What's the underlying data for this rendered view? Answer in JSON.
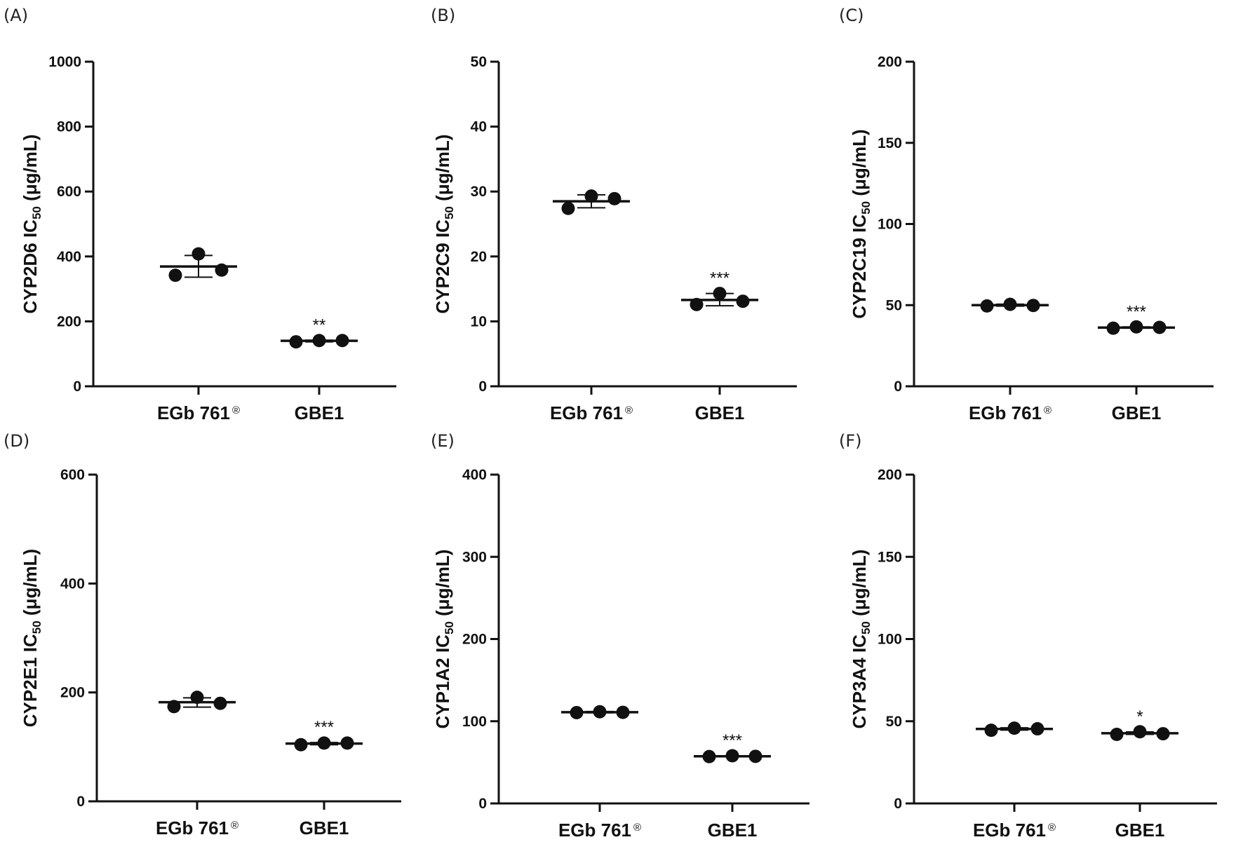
{
  "figure": {
    "colors": {
      "ink": "#111111",
      "background": "#ffffff"
    },
    "superscript_mark": "®",
    "subscript_text": "50"
  },
  "chart_data": [
    {
      "panel": "(A)",
      "type": "scatter",
      "ylabel": "CYP2D6 IC50 (μg/mL)",
      "ylabel_prefix": "CYP2D6 IC",
      "ylabel_unit": " (μg/mL)",
      "ylim": [
        0,
        1000
      ],
      "yticks": [
        0,
        200,
        400,
        600,
        800,
        1000
      ],
      "categories": [
        "EGb 761",
        "GBE1"
      ],
      "category_superscripts": [
        "®",
        ""
      ],
      "groups": [
        {
          "name": "EGb 761®",
          "points": [
            342,
            408,
            358
          ],
          "mean": 369,
          "sd_low": 336,
          "sd_high": 403,
          "significance": ""
        },
        {
          "name": "GBE1",
          "points": [
            137,
            141,
            141
          ],
          "mean": 140,
          "sd_low": 137,
          "sd_high": 142,
          "significance": "**"
        }
      ]
    },
    {
      "panel": "(B)",
      "type": "scatter",
      "ylabel": "CYP2C9 IC50 (μg/mL)",
      "ylabel_prefix": "CYP2C9 IC",
      "ylabel_unit": " (μg/mL)",
      "ylim": [
        0,
        50
      ],
      "yticks": [
        0,
        10,
        20,
        30,
        40,
        50
      ],
      "categories": [
        "EGb 761",
        "GBE1"
      ],
      "category_superscripts": [
        "®",
        ""
      ],
      "groups": [
        {
          "name": "EGb 761®",
          "points": [
            27.4,
            29.3,
            28.9
          ],
          "mean": 28.5,
          "sd_low": 27.5,
          "sd_high": 29.5,
          "significance": ""
        },
        {
          "name": "GBE1",
          "points": [
            12.6,
            14.3,
            13.1
          ],
          "mean": 13.3,
          "sd_low": 12.4,
          "sd_high": 14.3,
          "significance": "***"
        }
      ]
    },
    {
      "panel": "(C)",
      "type": "scatter",
      "ylabel": "CYP2C19 IC50 (μg/mL)",
      "ylabel_prefix": "CYP2C19 IC",
      "ylabel_unit": " (μg/mL)",
      "ylim": [
        0,
        200
      ],
      "yticks": [
        0,
        50,
        100,
        150,
        200
      ],
      "categories": [
        "EGb 761",
        "GBE1"
      ],
      "category_superscripts": [
        "®",
        ""
      ],
      "groups": [
        {
          "name": "EGb 761®",
          "points": [
            49.5,
            50.5,
            49.8
          ],
          "mean": 50,
          "sd_low": 49.4,
          "sd_high": 50.6,
          "significance": ""
        },
        {
          "name": "GBE1",
          "points": [
            35.8,
            36.6,
            36.3
          ],
          "mean": 36.2,
          "sd_low": 35.8,
          "sd_high": 36.6,
          "significance": "***"
        }
      ]
    },
    {
      "panel": "(D)",
      "type": "scatter",
      "ylabel": "CYP2E1 IC50 (μg/mL)",
      "ylabel_prefix": "CYP2E1 IC",
      "ylabel_unit": " (μg/mL)",
      "ylim": [
        0,
        600
      ],
      "yticks": [
        0,
        200,
        400,
        600
      ],
      "categories": [
        "EGb 761",
        "GBE1"
      ],
      "category_superscripts": [
        "®",
        ""
      ],
      "groups": [
        {
          "name": "EGb 761®",
          "points": [
            174,
            191,
            180
          ],
          "mean": 182,
          "sd_low": 173,
          "sd_high": 190,
          "significance": ""
        },
        {
          "name": "GBE1",
          "points": [
            104,
            107,
            107
          ],
          "mean": 106,
          "sd_low": 104,
          "sd_high": 108,
          "significance": "***"
        }
      ]
    },
    {
      "panel": "(E)",
      "type": "scatter",
      "ylabel": "CYP1A2 IC50 (μg/mL)",
      "ylabel_prefix": "CYP1A2 IC",
      "ylabel_unit": " (μg/mL)",
      "ylim": [
        0,
        400
      ],
      "yticks": [
        0,
        100,
        200,
        300,
        400
      ],
      "categories": [
        "EGb 761",
        "GBE1"
      ],
      "category_superscripts": [
        "®",
        ""
      ],
      "groups": [
        {
          "name": "EGb 761®",
          "points": [
            110.5,
            111.5,
            110.8
          ],
          "mean": 111,
          "sd_low": 110.2,
          "sd_high": 111.8,
          "significance": ""
        },
        {
          "name": "GBE1",
          "points": [
            57,
            58,
            57.3
          ],
          "mean": 57.4,
          "sd_low": 56.8,
          "sd_high": 58,
          "significance": "***"
        }
      ]
    },
    {
      "panel": "(F)",
      "type": "scatter",
      "ylabel": "CYP3A4 IC50 (μg/mL)",
      "ylabel_prefix": "CYP3A4 IC",
      "ylabel_unit": " (μg/mL)",
      "ylim": [
        0,
        200
      ],
      "yticks": [
        0,
        50,
        100,
        150,
        200
      ],
      "categories": [
        "EGb 761",
        "GBE1"
      ],
      "category_superscripts": [
        "®",
        ""
      ],
      "groups": [
        {
          "name": "EGb 761®",
          "points": [
            44.5,
            45.8,
            45.4
          ],
          "mean": 45.3,
          "sd_low": 44.6,
          "sd_high": 46,
          "significance": ""
        },
        {
          "name": "GBE1",
          "points": [
            42,
            43.6,
            42.4
          ],
          "mean": 42.7,
          "sd_low": 42,
          "sd_high": 43.5,
          "significance": "*"
        }
      ]
    }
  ]
}
